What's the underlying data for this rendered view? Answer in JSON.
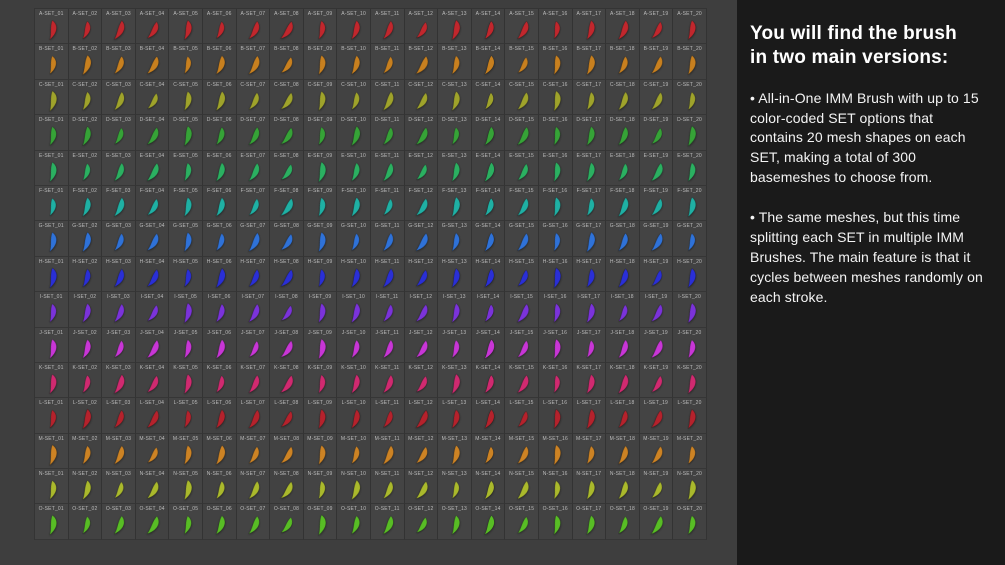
{
  "panel": {
    "heading": "You will find the brush\nin two main versions:",
    "bullet1": "• All-in-One IMM Brush with up to 15 color-coded SET options that contains 20 mesh shapes on each SET, making a total of 300 basemeshes to choose from.",
    "bullet2": "• The same meshes, but this time splitting each SET in multiple IMM Brushes. The main feature is that it cycles between meshes randomly on each stroke."
  },
  "grid": {
    "columns": 20,
    "label_suffix": "SET",
    "sets": [
      {
        "letter": "A",
        "color": "#c1272d"
      },
      {
        "letter": "B",
        "color": "#c8801f"
      },
      {
        "letter": "C",
        "color": "#9fa32b"
      },
      {
        "letter": "D",
        "color": "#36a337"
      },
      {
        "letter": "E",
        "color": "#2bb061"
      },
      {
        "letter": "F",
        "color": "#1fb0a4"
      },
      {
        "letter": "G",
        "color": "#2f72d8"
      },
      {
        "letter": "H",
        "color": "#2a2fd6"
      },
      {
        "letter": "I",
        "color": "#7b33da"
      },
      {
        "letter": "J",
        "color": "#c836d6"
      },
      {
        "letter": "K",
        "color": "#d02a70"
      },
      {
        "letter": "L",
        "color": "#b5222c"
      },
      {
        "letter": "M",
        "color": "#cd8324"
      },
      {
        "letter": "N",
        "color": "#aab92c"
      },
      {
        "letter": "O",
        "color": "#58bd25"
      }
    ]
  },
  "colors": {
    "left_background": "#3e3e3e",
    "panel_background": "#1a1a1a",
    "cell_background": "#444444",
    "label_text": "#bcbcbc"
  }
}
